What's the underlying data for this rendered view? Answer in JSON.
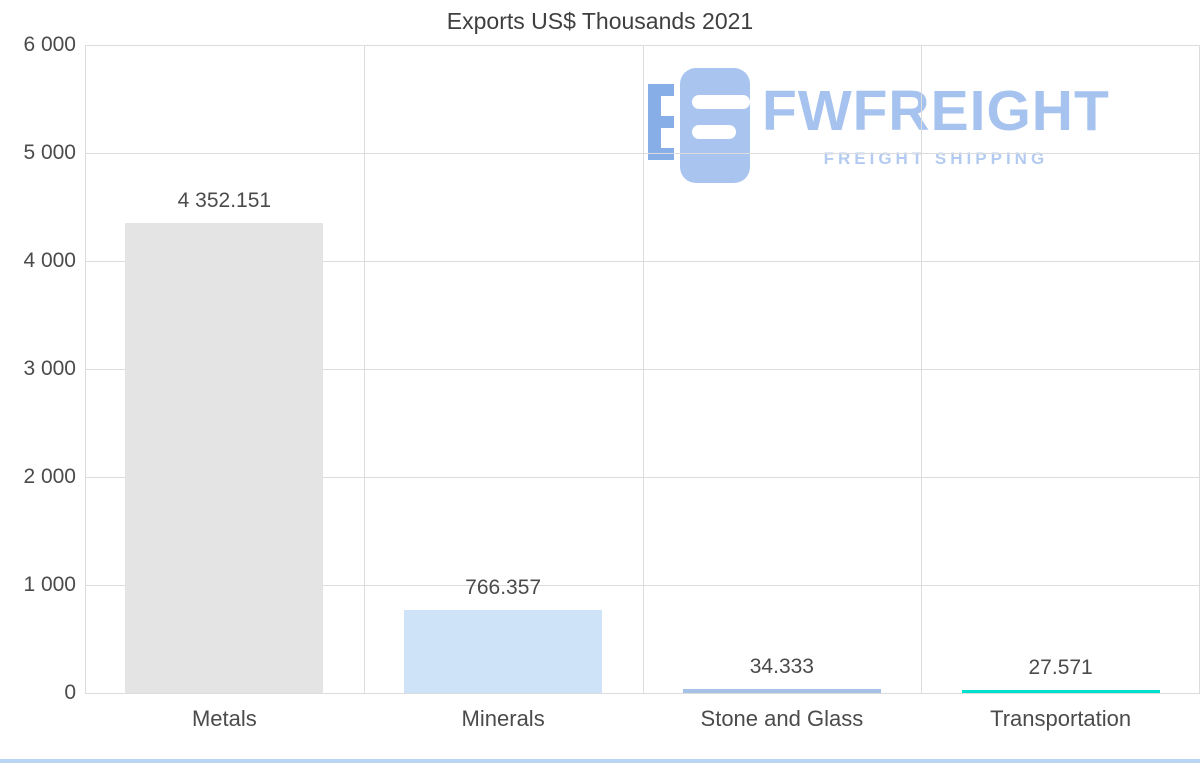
{
  "chart_data": {
    "type": "bar",
    "title": "Exports US$ Thousands 2021",
    "categories": [
      "Metals",
      "Minerals",
      "Stone and Glass",
      "Transportation"
    ],
    "values": [
      4352.151,
      766.357,
      34.333,
      27.571
    ],
    "value_labels": [
      "4 352.151",
      "766.357",
      "34.333",
      "27.571"
    ],
    "bar_colors": [
      "#e4e4e4",
      "#cfe3f8",
      "#a6c1e6",
      "#00e0cf"
    ],
    "y_ticks": [
      "6 000",
      "5 000",
      "4 000",
      "3 000",
      "2 000",
      "1 000",
      "0"
    ],
    "y_tick_values": [
      6000,
      5000,
      4000,
      3000,
      2000,
      1000,
      0
    ],
    "ylim": [
      0,
      6000
    ],
    "xlabel": "",
    "ylabel": "",
    "grid": true,
    "legend": "none"
  },
  "watermark": {
    "brand": "FWFREIGHT",
    "tagline": "FREIGHT SHIPPING",
    "brand_color": "#a6c2ee",
    "tagline_color": "#b4cbf1",
    "logo_block_color": "#a9c5ef",
    "logo_bracket_color": "#88aee8"
  },
  "page": {
    "bottom_bar_color": "#b9d5f4"
  }
}
